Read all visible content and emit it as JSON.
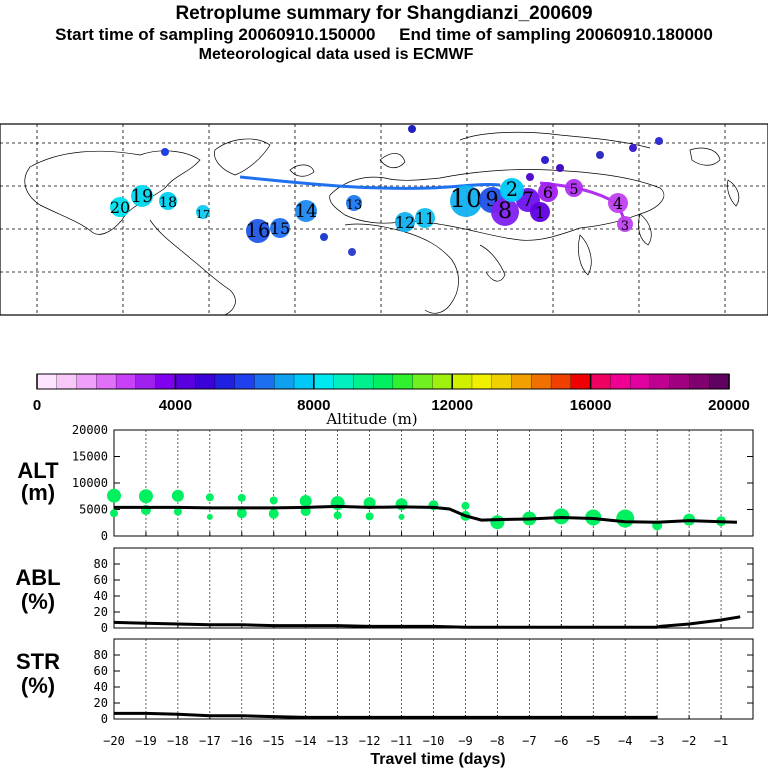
{
  "header": {
    "title": "Retroplume summary for Shangdianzi_200609",
    "subtitle": "Start time of sampling 20060910.150000     End time of sampling 20060910.180000",
    "met_line": "Meteorological data used is ECMWF"
  },
  "colorbar": {
    "label": "Altitude (m)",
    "ticks": [
      "0",
      "4000",
      "8000",
      "12000",
      "16000",
      "20000"
    ],
    "colors": [
      "#ffe4ff",
      "#f8c8f8",
      "#f0a0f8",
      "#e070f8",
      "#c840f8",
      "#a020f0",
      "#8000f0",
      "#5a00e0",
      "#3c00d8",
      "#2020e0",
      "#2040f0",
      "#1c70f0",
      "#10a0f0",
      "#00c8f8",
      "#00e8f0",
      "#00f0c0",
      "#00f090",
      "#00f060",
      "#30f030",
      "#70f020",
      "#a0f010",
      "#d0f000",
      "#f0f000",
      "#f0d000",
      "#f0a000",
      "#f07000",
      "#f04000",
      "#f00000",
      "#f00060",
      "#f00090",
      "#e000a0",
      "#c00090",
      "#a00080",
      "#800070",
      "#600060"
    ]
  },
  "map_labels": [
    "20",
    "19",
    "18",
    "17",
    "16",
    "15",
    "14",
    "13",
    "12",
    "11",
    "10",
    "9",
    "8",
    "7",
    "6",
    "5",
    "4",
    "3",
    "2",
    "1"
  ],
  "chart_data": [
    {
      "type": "line",
      "title": "ALT (m)",
      "ylabel": "ALT (m)",
      "xlabel": "Travel time (days)",
      "xlim": [
        -20,
        0
      ],
      "ylim": [
        0,
        20000
      ],
      "yticks": [
        "0",
        "5000",
        "10000",
        "15000",
        "20000"
      ],
      "x": [
        -20,
        -19,
        -18,
        -17,
        -16,
        -15,
        -14,
        -13,
        -12,
        -11,
        -10,
        -9.5,
        -9,
        -8.5,
        -8,
        -7,
        -6,
        -5,
        -4,
        -3,
        -2,
        -1,
        -0.5
      ],
      "series": [
        {
          "name": "mean altitude",
          "values": [
            5400,
            5400,
            5400,
            5300,
            5300,
            5300,
            5400,
            5600,
            5400,
            5500,
            5400,
            5100,
            3800,
            3000,
            3100,
            3200,
            3500,
            3300,
            2700,
            2600,
            2900,
            2700,
            2600
          ]
        }
      ],
      "scatter": [
        {
          "x": -20,
          "y": 7600,
          "r": 7
        },
        {
          "x": -20,
          "y": 4300,
          "r": 4
        },
        {
          "x": -19,
          "y": 7500,
          "r": 7
        },
        {
          "x": -19,
          "y": 4900,
          "r": 5
        },
        {
          "x": -18,
          "y": 7600,
          "r": 6
        },
        {
          "x": -18,
          "y": 4600,
          "r": 4
        },
        {
          "x": -17,
          "y": 7300,
          "r": 4
        },
        {
          "x": -17,
          "y": 3600,
          "r": 3
        },
        {
          "x": -16,
          "y": 7200,
          "r": 4
        },
        {
          "x": -16,
          "y": 4300,
          "r": 5
        },
        {
          "x": -15,
          "y": 6700,
          "r": 4
        },
        {
          "x": -15,
          "y": 4200,
          "r": 5
        },
        {
          "x": -14,
          "y": 6600,
          "r": 6
        },
        {
          "x": -14,
          "y": 4700,
          "r": 5
        },
        {
          "x": -13,
          "y": 6200,
          "r": 7
        },
        {
          "x": -13,
          "y": 3900,
          "r": 4
        },
        {
          "x": -12,
          "y": 6200,
          "r": 6
        },
        {
          "x": -12,
          "y": 3700,
          "r": 4
        },
        {
          "x": -11,
          "y": 6000,
          "r": 6
        },
        {
          "x": -11,
          "y": 3600,
          "r": 3
        },
        {
          "x": -10,
          "y": 5800,
          "r": 5
        },
        {
          "x": -9,
          "y": 5700,
          "r": 4
        },
        {
          "x": -9,
          "y": 3800,
          "r": 5
        },
        {
          "x": -8,
          "y": 2600,
          "r": 7
        },
        {
          "x": -7,
          "y": 3300,
          "r": 7
        },
        {
          "x": -6,
          "y": 3700,
          "r": 8
        },
        {
          "x": -5,
          "y": 3500,
          "r": 8
        },
        {
          "x": -4,
          "y": 3300,
          "r": 9
        },
        {
          "x": -3,
          "y": 2000,
          "r": 5
        },
        {
          "x": -2,
          "y": 3100,
          "r": 6
        },
        {
          "x": -1,
          "y": 2800,
          "r": 5
        }
      ]
    },
    {
      "type": "line",
      "title": "ABL (%)",
      "ylabel": "ABL (%)",
      "xlim": [
        -20,
        0
      ],
      "ylim": [
        0,
        100
      ],
      "yticks": [
        "0",
        "20",
        "40",
        "60",
        "80"
      ],
      "x": [
        -20,
        -19,
        -18,
        -17,
        -16,
        -15,
        -14,
        -13,
        -12,
        -11,
        -10,
        -9,
        -8,
        -7,
        -6,
        -5,
        -4,
        -3,
        -2.9,
        -2,
        -1,
        -0.4
      ],
      "series": [
        {
          "name": "ABL fraction",
          "values": [
            7,
            6,
            5,
            4,
            4,
            3,
            3,
            3,
            2,
            2,
            2,
            1,
            1,
            1,
            1,
            1,
            1,
            1,
            2,
            5,
            10,
            14
          ]
        }
      ]
    },
    {
      "type": "line",
      "title": "STR (%)",
      "ylabel": "STR (%)",
      "xlim": [
        -20,
        0
      ],
      "ylim": [
        0,
        100
      ],
      "yticks": [
        "0",
        "20",
        "40",
        "60",
        "80"
      ],
      "xticks": [
        "−20",
        "−19",
        "−18",
        "−17",
        "−16",
        "−15",
        "−14",
        "−13",
        "−12",
        "−11",
        "−10",
        "−9",
        "−8",
        "−7",
        "−6",
        "−5",
        "−4",
        "−3",
        "−2",
        "−1"
      ],
      "x": [
        -20,
        -19,
        -18,
        -17,
        -16,
        -15,
        -14,
        -13,
        -12,
        -11,
        -10,
        -9,
        -8,
        -7,
        -6,
        -5,
        -4,
        -3
      ],
      "series": [
        {
          "name": "stratosphere fraction",
          "values": [
            7,
            7,
            6,
            4,
            4,
            3,
            2,
            2,
            2,
            2,
            2,
            2,
            2,
            2,
            2,
            2,
            2,
            2
          ]
        }
      ]
    }
  ]
}
